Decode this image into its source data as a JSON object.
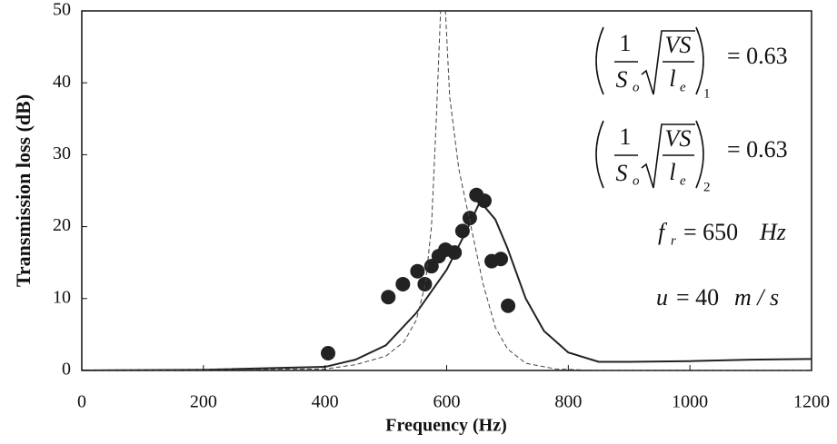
{
  "chart_data": {
    "type": "line",
    "xlabel": "Frequency (Hz)",
    "ylabel": "Transmission loss (dB)",
    "xlim": [
      0,
      1200
    ],
    "xticks": [
      0,
      200,
      400,
      600,
      800,
      1000,
      1200
    ],
    "ylim": [
      0,
      50
    ],
    "yticks": [
      0,
      10,
      20,
      30,
      40,
      50
    ],
    "series": [
      {
        "type": "scatter",
        "color": "#222222",
        "x": [
          405,
          504,
          528,
          552,
          564,
          575,
          587,
          598,
          613,
          626,
          638,
          649,
          662,
          674,
          689,
          701
        ],
        "values": [
          2.4,
          10.2,
          12.0,
          13.8,
          12.0,
          14.5,
          15.9,
          16.8,
          16.4,
          19.4,
          21.2,
          24.4,
          23.6,
          15.2,
          15.5,
          9.0
        ]
      },
      {
        "type": "line",
        "style": "solid",
        "color": "#222222",
        "x": [
          0,
          200,
          400,
          450,
          500,
          550,
          600,
          630,
          655,
          680,
          700,
          730,
          760,
          800,
          850,
          900,
          1000,
          1100,
          1200
        ],
        "values": [
          0,
          0.1,
          0.5,
          1.5,
          3.5,
          8,
          14,
          19,
          23.5,
          21,
          17,
          10,
          5.5,
          2.5,
          1.2,
          1.2,
          1.3,
          1.5,
          1.6
        ]
      },
      {
        "type": "line",
        "style": "dashed",
        "color": "#444444",
        "x": [
          0,
          400,
          450,
          500,
          530,
          550,
          565,
          575,
          583,
          590,
          598,
          605,
          620,
          640,
          660,
          680,
          700,
          730,
          780,
          850,
          1200
        ],
        "values": [
          0,
          0.2,
          0.8,
          2,
          4,
          7,
          12,
          20,
          35,
          50,
          50,
          38,
          28,
          20,
          12,
          6,
          3,
          1,
          0.2,
          0,
          0
        ]
      }
    ],
    "annotations": {
      "formula1": {
        "num": "1",
        "den": "S",
        "den_sub": "o",
        "root_num": "VS",
        "root_den": "l",
        "root_den_sub": "e",
        "outer_sub": "1",
        "rhs": "= 0.63"
      },
      "formula2": {
        "num": "1",
        "den": "S",
        "den_sub": "o",
        "root_num": "VS",
        "root_den": "l",
        "root_den_sub": "e",
        "outer_sub": "2",
        "rhs": "= 0.63"
      },
      "resonance": {
        "sym": "f",
        "sub": "r",
        "rhs": "= 650",
        "unit": "Hz"
      },
      "velocity": {
        "sym": "u",
        "rhs": "= 40",
        "unit": "m / s"
      }
    }
  }
}
